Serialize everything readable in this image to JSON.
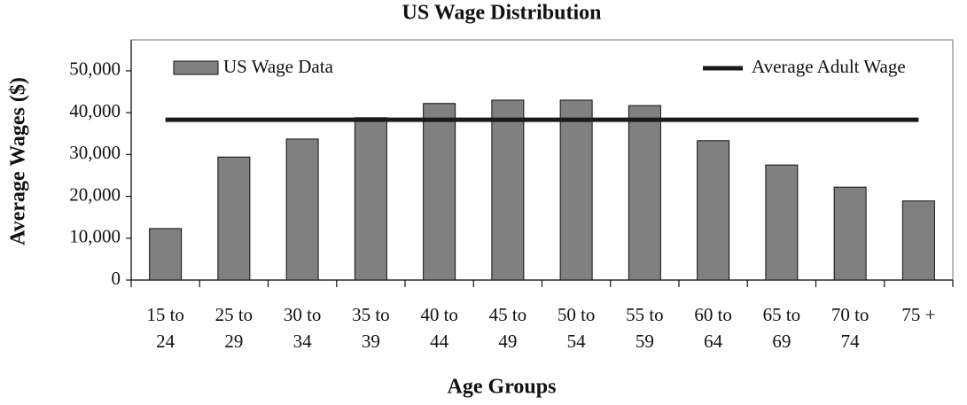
{
  "chart_data": {
    "type": "bar",
    "title": "US Wage Distribution",
    "x_label": "Age Groups",
    "y_label": "Average Wages ($)",
    "categories": [
      "15 to 24",
      "25 to 29",
      "30 to 34",
      "35 to 39",
      "40 to 44",
      "45 to 49",
      "50 to 54",
      "55 to 59",
      "60 to 64",
      "65 to 69",
      "70 to 74",
      "75 +"
    ],
    "series": [
      {
        "name": "US Wage Data",
        "type": "bar",
        "color": "#808080",
        "values": [
          12300,
          29400,
          33700,
          38800,
          42200,
          43000,
          43000,
          41700,
          33300,
          27500,
          22200,
          18900
        ]
      },
      {
        "name": "Average Adult Wage",
        "type": "line",
        "color": "#1a1a1a",
        "values": [
          38300,
          38300,
          38300,
          38300,
          38300,
          38300,
          38300,
          38300,
          38300,
          38300,
          38300,
          38300
        ]
      }
    ],
    "ylim": [
      0,
      57400
    ],
    "yticks": [
      0,
      {
        "value": 10000,
        "label": "10,000"
      },
      {
        "value": 20000,
        "label": "20,000"
      },
      {
        "value": 30000,
        "label": "30,000"
      },
      {
        "value": 40000,
        "label": "40,000"
      },
      {
        "value": 50000,
        "label": "50,000"
      }
    ]
  }
}
